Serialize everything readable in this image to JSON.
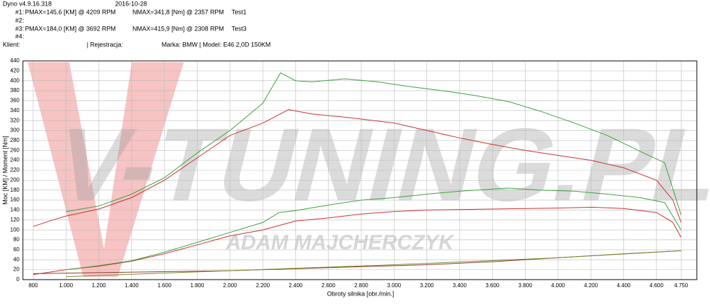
{
  "header": {
    "app": "Dyno v4.9.16.318",
    "date": "2016-10-28",
    "rows": [
      {
        "id": "#1:",
        "pmax": "PMAX=145,6 [KM] @ 4209 RPM",
        "nmax": "NMAX=341,8 [Nm] @ 2357 RPM",
        "test": "Test1"
      },
      {
        "id": "#2:"
      },
      {
        "id": "#3:",
        "pmax": "PMAX=184,0 [KM] @ 3692 RPM",
        "nmax": "NMAX=415,9 [Nm] @ 2308 RPM",
        "test": "Test3"
      },
      {
        "id": "#4:"
      }
    ],
    "client": "Klient:",
    "registration": "| Rejestracja:",
    "vehicle": "Marka: BMW | Model: E46 2,0D 150KM"
  },
  "chart_data": {
    "type": "line",
    "x_label": "Obroty silnika [obr./min.]",
    "y_label": "Moc [KM] / Moment [Nm]",
    "watermark": "V-TUNING.PL",
    "watermark_sub": "ADAM MAJCHERCZYK",
    "xlim": [
      737,
      4846
    ],
    "ylim": [
      0,
      440
    ],
    "grid": true,
    "xticks": [
      800,
      {
        "value": 1000,
        "label": "1.000"
      },
      {
        "value": 1200,
        "label": "1.200"
      },
      {
        "value": 1400,
        "label": "1.400"
      },
      {
        "value": 1600,
        "label": "1.600"
      },
      {
        "value": 1800,
        "label": "1.800"
      },
      {
        "value": 2000,
        "label": "2.000"
      },
      {
        "value": 2200,
        "label": "2.200"
      },
      {
        "value": 2400,
        "label": "2.400"
      },
      {
        "value": 2600,
        "label": "2.600"
      },
      {
        "value": 2800,
        "label": "2.800"
      },
      {
        "value": 3000,
        "label": "3.000"
      },
      {
        "value": 3200,
        "label": "3.200"
      },
      {
        "value": 3400,
        "label": "3.400"
      },
      {
        "value": 3600,
        "label": "3.600"
      },
      {
        "value": 3800,
        "label": "3.800"
      },
      {
        "value": 4000,
        "label": "4.000"
      },
      {
        "value": 4200,
        "label": "4.200"
      },
      {
        "value": 4400,
        "label": "4.400"
      },
      {
        "value": 4600,
        "label": "4.600"
      },
      {
        "value": 4750,
        "label": "4.750"
      }
    ],
    "yticks": [
      0,
      20,
      40,
      60,
      80,
      100,
      120,
      140,
      160,
      180,
      200,
      220,
      240,
      260,
      280,
      300,
      320,
      340,
      360,
      380,
      400,
      420,
      440
    ],
    "series": [
      {
        "color": "#c83232",
        "x": [
          800,
          900,
          1000,
          1200,
          1400,
          1600,
          1800,
          2000,
          2200,
          2357,
          2500,
          2700,
          3000,
          3200,
          3400,
          3600,
          3800,
          4000,
          4200,
          4400,
          4600,
          4700,
          4750
        ],
        "values": [
          107,
          118,
          128,
          142,
          165,
          200,
          245,
          290,
          315,
          342,
          333,
          327,
          315,
          300,
          285,
          272,
          260,
          250,
          240,
          225,
          200,
          160,
          115
        ]
      },
      {
        "color": "#3ca03c",
        "x": [
          1000,
          1200,
          1400,
          1600,
          1800,
          2000,
          2200,
          2308,
          2400,
          2500,
          2700,
          2900,
          3100,
          3300,
          3500,
          3700,
          3900,
          4100,
          4300,
          4500,
          4650,
          4750
        ],
        "values": [
          137,
          148,
          172,
          205,
          255,
          300,
          355,
          416,
          400,
          398,
          404,
          398,
          388,
          380,
          370,
          358,
          338,
          315,
          290,
          258,
          235,
          130
        ]
      },
      {
        "color": "#c83232",
        "x": [
          800,
          1000,
          1200,
          1400,
          1600,
          1800,
          2000,
          2200,
          2400,
          2600,
          2800,
          3000,
          3200,
          3400,
          3600,
          3800,
          4000,
          4209,
          4400,
          4600,
          4700,
          4750
        ],
        "values": [
          10,
          20,
          27,
          37,
          52,
          70,
          88,
          100,
          118,
          124,
          132,
          137,
          140,
          141,
          142,
          143,
          144,
          145.6,
          143,
          135,
          115,
          85
        ]
      },
      {
        "color": "#3ca03c",
        "x": [
          1000,
          1200,
          1400,
          1600,
          1800,
          2000,
          2200,
          2300,
          2400,
          2600,
          2800,
          3000,
          3200,
          3400,
          3692,
          3900,
          4100,
          4300,
          4500,
          4650,
          4750
        ],
        "values": [
          20,
          28,
          38,
          55,
          75,
          95,
          115,
          135,
          139,
          150,
          160,
          165,
          172,
          178,
          184,
          180,
          178,
          172,
          165,
          155,
          100
        ]
      },
      {
        "color": "#8b3a2a",
        "x": [
          800,
          1200,
          1600,
          2000,
          2400,
          2800,
          3200,
          3600,
          4000,
          4400,
          4750
        ],
        "values": [
          12,
          14,
          16,
          18,
          22,
          26,
          30,
          36,
          44,
          52,
          58
        ]
      },
      {
        "color": "#7a8a2a",
        "x": [
          1000,
          2000,
          3000,
          4000,
          4750
        ],
        "values": [
          6,
          18,
          30,
          44,
          58
        ]
      }
    ]
  }
}
